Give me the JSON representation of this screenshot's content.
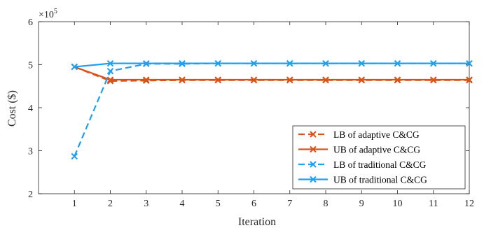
{
  "chart_data": {
    "type": "line",
    "xlabel": "Iteration",
    "ylabel": "Cost ($)",
    "y_exponent_label": "×10",
    "y_exponent_power": "5",
    "xlim": [
      0,
      12
    ],
    "ylim": [
      2,
      6
    ],
    "x_ticks": [
      1,
      2,
      3,
      4,
      5,
      6,
      7,
      8,
      9,
      10,
      11,
      12
    ],
    "y_ticks": [
      2,
      3,
      4,
      5,
      6
    ],
    "grid": false,
    "legend_position": "bottom-right",
    "x": [
      1,
      2,
      3,
      4,
      5,
      6,
      7,
      8,
      9,
      10,
      11,
      12
    ],
    "series": [
      {
        "name": "LB of adaptive C&CG",
        "color": "#D95319",
        "line_style": "dashed",
        "marker": "x",
        "values": [
          4.95,
          4.62,
          4.63,
          4.64,
          4.64,
          4.64,
          4.64,
          4.64,
          4.64,
          4.64,
          4.64,
          4.64
        ]
      },
      {
        "name": "UB of adaptive C&CG",
        "color": "#D95319",
        "line_style": "solid",
        "marker": "x",
        "values": [
          4.95,
          4.65,
          4.65,
          4.65,
          4.65,
          4.65,
          4.65,
          4.65,
          4.65,
          4.65,
          4.65,
          4.65
        ]
      },
      {
        "name": "LB of traditional C&CG",
        "color": "#1EA0F0",
        "line_style": "dashed",
        "marker": "x",
        "values": [
          2.87,
          4.85,
          5.02,
          5.02,
          5.03,
          5.03,
          5.03,
          5.03,
          5.03,
          5.03,
          5.03,
          5.03
        ]
      },
      {
        "name": "UB of traditional C&CG",
        "color": "#1EA0F0",
        "line_style": "solid",
        "marker": "x",
        "values": [
          4.95,
          5.03,
          5.03,
          5.03,
          5.03,
          5.03,
          5.03,
          5.03,
          5.03,
          5.03,
          5.03,
          5.03
        ]
      }
    ]
  }
}
